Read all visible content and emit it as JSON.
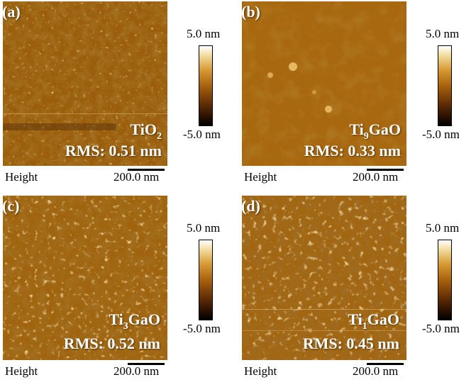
{
  "panels": [
    {
      "tag": "(a)",
      "sample_main": "TiO",
      "sample_sub": "2",
      "sample_tail": "",
      "rms": "RMS: 0.51 nm"
    },
    {
      "tag": "(b)",
      "sample_main": "Ti",
      "sample_sub": "9",
      "sample_tail": "GaO",
      "rms": "RMS: 0.33 nm"
    },
    {
      "tag": "(c)",
      "sample_main": "Ti",
      "sample_sub": "3",
      "sample_tail": "GaO",
      "rms": "RMS: 0.52 nm"
    },
    {
      "tag": "(d)",
      "sample_main": "Ti",
      "sample_sub": "1",
      "sample_tail": "GaO",
      "rms": "RMS: 0.45 nm"
    }
  ],
  "height_label": "Height",
  "scale_label": "200.0 nm",
  "colorbar": {
    "max": "5.0 nm",
    "min": "-5.0 nm"
  },
  "colors": {
    "afm_base": "#a0640c",
    "afm_dark": "#5a2e06",
    "afm_light": "#f0c060"
  }
}
